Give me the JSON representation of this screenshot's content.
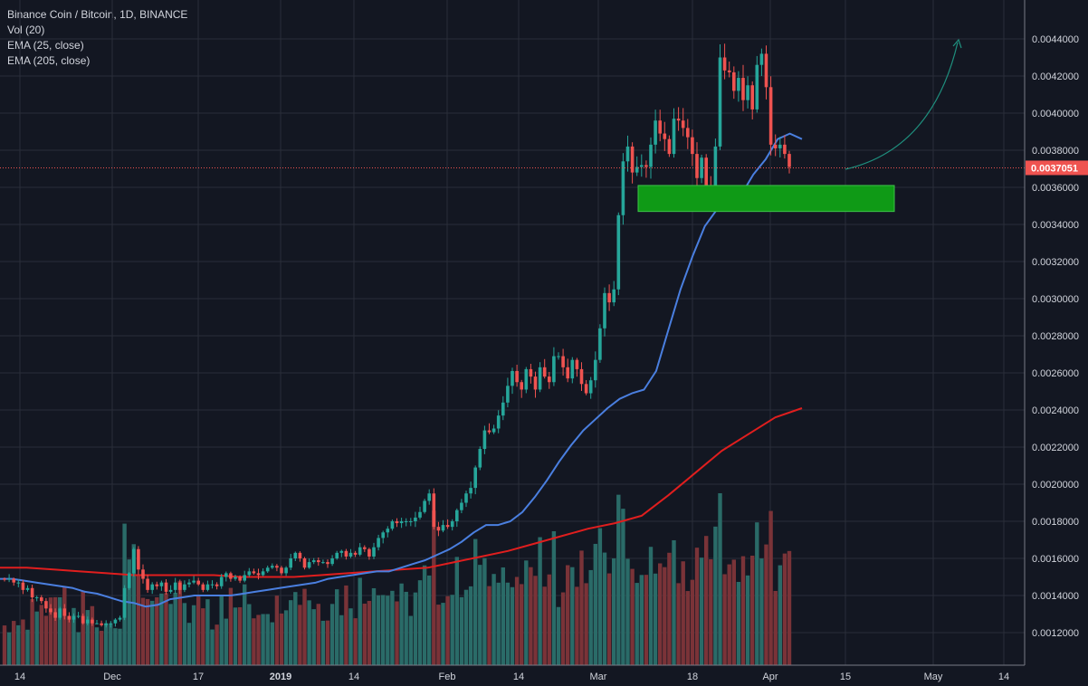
{
  "legend": {
    "title": "Binance Coin / Bitcoin, 1D, BINANCE",
    "volume": "Vol (20)",
    "ema_fast": "EMA (25, close)",
    "ema_slow": "EMA (205, close)"
  },
  "colors": {
    "background": "#131722",
    "grid": "#2a2e39",
    "up": "#26a69a",
    "down": "#ef5350",
    "vol_up": "#2a6b68",
    "vol_down": "#7a3338",
    "ema_fast": "#4a7fe0",
    "ema_slow": "#e01e1e",
    "zone": "#0f9a16",
    "arrow": "#1f8f7e",
    "axis_text": "#d1d4dc"
  },
  "chart_data": {
    "type": "candlestick",
    "title": "Binance Coin / Bitcoin, 1D, BINANCE",
    "x_axis_labels": [
      "14",
      "Dec",
      "17",
      "2019",
      "14",
      "Feb",
      "14",
      "Mar",
      "18",
      "Apr",
      "15",
      "May",
      "14"
    ],
    "y_axis_labels": [
      "0.0044000",
      "0.0042000",
      "0.0040000",
      "0.0038000",
      "0.0036000",
      "0.0034000",
      "0.0032000",
      "0.0030000",
      "0.0028000",
      "0.0026000",
      "0.0024000",
      "0.0022000",
      "0.0020000",
      "0.0018000",
      "0.0016000",
      "0.0014000",
      "0.0012000"
    ],
    "ylim": [
      0.00108,
      0.0045
    ],
    "last_price": "0.0037051",
    "grid": true,
    "indicators": [
      "Vol (20)",
      "EMA (25, close)",
      "EMA (205, close)"
    ],
    "closes": [
      0.001485,
      0.00149,
      0.00147,
      0.00147,
      0.00143,
      0.00144,
      0.00139,
      0.00139,
      0.00137,
      0.00133,
      0.00131,
      0.00128,
      0.00133,
      0.00129,
      0.00127,
      0.00129,
      0.00129,
      0.00125,
      0.00127,
      0.00125,
      0.00125,
      0.00124,
      0.00125,
      0.00125,
      0.00127,
      0.00128,
      0.00144,
      0.00152,
      0.00165,
      0.00154,
      0.00149,
      0.00143,
      0.00146,
      0.00145,
      0.00147,
      0.00142,
      0.00143,
      0.00147,
      0.00143,
      0.00146,
      0.00147,
      0.00148,
      0.00146,
      0.00143,
      0.00146,
      0.00146,
      0.00145,
      0.0015,
      0.00152,
      0.00149,
      0.0015,
      0.00148,
      0.00151,
      0.00153,
      0.00152,
      0.00151,
      0.00153,
      0.00155,
      0.00156,
      0.00155,
      0.00152,
      0.00155,
      0.0016,
      0.00163,
      0.0016,
      0.00155,
      0.00158,
      0.00159,
      0.00158,
      0.00158,
      0.00157,
      0.0016,
      0.00163,
      0.00164,
      0.00161,
      0.00163,
      0.00162,
      0.00166,
      0.00165,
      0.00161,
      0.00166,
      0.00171,
      0.00174,
      0.00176,
      0.0018,
      0.00179,
      0.0018,
      0.0018,
      0.0018,
      0.00182,
      0.00185,
      0.00191,
      0.00195,
      0.00177,
      0.00175,
      0.00178,
      0.00177,
      0.0018,
      0.00186,
      0.0019,
      0.00195,
      0.00198,
      0.00209,
      0.00219,
      0.00229,
      0.00228,
      0.0023,
      0.00237,
      0.00244,
      0.00253,
      0.00261,
      0.00255,
      0.00251,
      0.00262,
      0.00258,
      0.00251,
      0.00263,
      0.00258,
      0.00255,
      0.00269,
      0.00269,
      0.00263,
      0.00257,
      0.00267,
      0.00262,
      0.00254,
      0.00249,
      0.00256,
      0.00267,
      0.00284,
      0.00303,
      0.00298,
      0.00305,
      0.00345,
      0.00374,
      0.00382,
      0.00368,
      0.00371,
      0.00372,
      0.00371,
      0.00383,
      0.00396,
      0.00389,
      0.00386,
      0.00378,
      0.00397,
      0.00396,
      0.00392,
      0.00387,
      0.00378,
      0.00365,
      0.00376,
      0.00361,
      0.00358,
      0.00382,
      0.0043,
      0.00423,
      0.00422,
      0.00412,
      0.00419,
      0.00407,
      0.00415,
      0.00402,
      0.00426,
      0.00432,
      0.00414,
      0.00383,
      0.00381,
      0.00383,
      0.00378,
      0.00371
    ],
    "ema_25": [
      0.00149,
      0.00149,
      0.00148,
      0.00147,
      0.00146,
      0.00145,
      0.00144,
      0.00142,
      0.00141,
      0.00139,
      0.00137,
      0.00136,
      0.00134,
      0.00135,
      0.00138,
      0.00139,
      0.0014,
      0.0014,
      0.0014,
      0.0014,
      0.00141,
      0.00142,
      0.00143,
      0.00144,
      0.00145,
      0.00146,
      0.00147,
      0.00149,
      0.0015,
      0.00151,
      0.00152,
      0.00153,
      0.00153,
      0.00155,
      0.00157,
      0.00159,
      0.00162,
      0.00165,
      0.00169,
      0.00174,
      0.00178,
      0.00178,
      0.0018,
      0.00185,
      0.00193,
      0.00202,
      0.00212,
      0.00221,
      0.00229,
      0.00235,
      0.00241,
      0.00246,
      0.00249,
      0.00251,
      0.00261,
      0.00283,
      0.00305,
      0.00323,
      0.00339,
      0.00348,
      0.0035,
      0.00356,
      0.00367,
      0.00375,
      0.00386,
      0.00389,
      0.00386
    ],
    "ema_205": [
      0.00155,
      0.00155,
      0.00154,
      0.00153,
      0.00152,
      0.00151,
      0.00151,
      0.00151,
      0.00151,
      0.0015,
      0.0015,
      0.0015,
      0.00151,
      0.00152,
      0.00153,
      0.00154,
      0.00155,
      0.00158,
      0.00161,
      0.00164,
      0.00168,
      0.00172,
      0.00176,
      0.00179,
      0.00183,
      0.00194,
      0.00206,
      0.00218,
      0.00227,
      0.00236,
      0.00241
    ]
  }
}
